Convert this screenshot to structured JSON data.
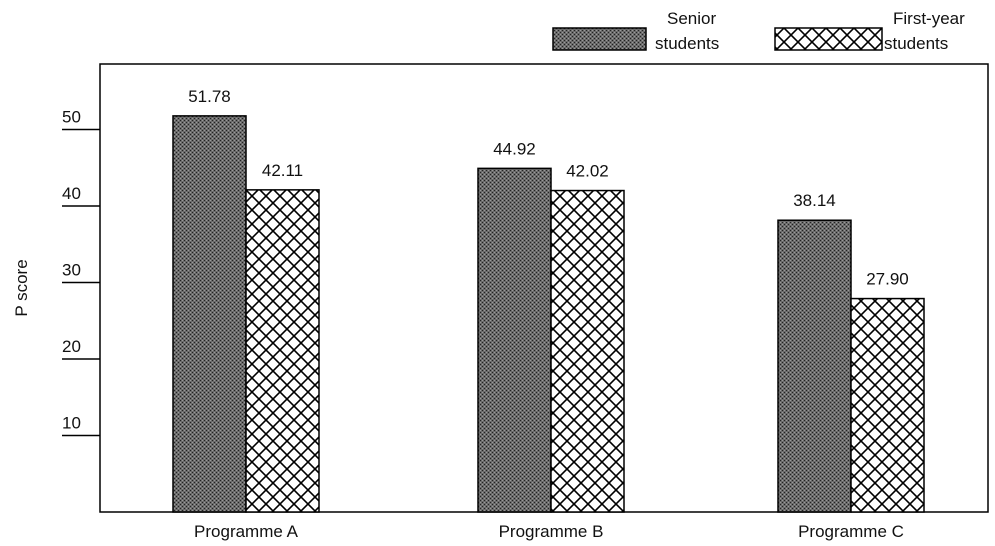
{
  "chart_data": {
    "type": "bar",
    "title": "",
    "xlabel": "",
    "ylabel": "P score",
    "ylim": [
      0,
      57
    ],
    "yticks": [
      10,
      20,
      30,
      40,
      50
    ],
    "categories": [
      "Programme A",
      "Programme B",
      "Programme C"
    ],
    "series": [
      {
        "name_lines": [
          "Senior",
          "students"
        ],
        "values": [
          51.78,
          44.92,
          38.14
        ],
        "labels": [
          "51.78",
          "44.92",
          "38.14"
        ],
        "pattern": "dense-dots"
      },
      {
        "name_lines": [
          "First-year",
          "students"
        ],
        "values": [
          42.11,
          42.02,
          27.9
        ],
        "labels": [
          "42.11",
          "42.02",
          "27.90"
        ],
        "pattern": "crosshatch"
      }
    ],
    "legend_position": "top-right",
    "grid": false
  }
}
